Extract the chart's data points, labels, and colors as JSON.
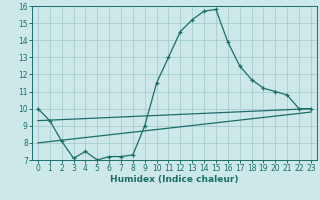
{
  "title": "",
  "xlabel": "Humidex (Indice chaleur)",
  "xlim": [
    -0.5,
    23.5
  ],
  "ylim": [
    7,
    16
  ],
  "yticks": [
    7,
    8,
    9,
    10,
    11,
    12,
    13,
    14,
    15,
    16
  ],
  "xticks": [
    0,
    1,
    2,
    3,
    4,
    5,
    6,
    7,
    8,
    9,
    10,
    11,
    12,
    13,
    14,
    15,
    16,
    17,
    18,
    19,
    20,
    21,
    22,
    23
  ],
  "bg_color": "#cde8e8",
  "grid_color": "#aacccc",
  "line_color": "#1a6e6a",
  "line1_x": [
    0,
    1,
    2,
    3,
    4,
    5,
    6,
    7,
    8,
    9,
    10,
    11,
    12,
    13,
    14,
    15,
    16,
    17,
    18,
    19,
    20,
    21,
    22,
    23
  ],
  "line1_y": [
    10.0,
    9.3,
    8.1,
    7.1,
    7.5,
    7.0,
    7.2,
    7.2,
    7.3,
    9.0,
    11.5,
    13.0,
    14.5,
    15.2,
    15.7,
    15.8,
    13.9,
    12.5,
    11.7,
    11.2,
    11.0,
    10.8,
    10.0,
    10.0
  ],
  "line2_x": [
    0,
    23
  ],
  "line2_y": [
    9.3,
    10.0
  ],
  "line3_x": [
    0,
    23
  ],
  "line3_y": [
    8.0,
    9.8
  ],
  "tick_fontsize": 5.5,
  "xlabel_fontsize": 6.5,
  "marker_size": 3.5,
  "linewidth": 0.9
}
